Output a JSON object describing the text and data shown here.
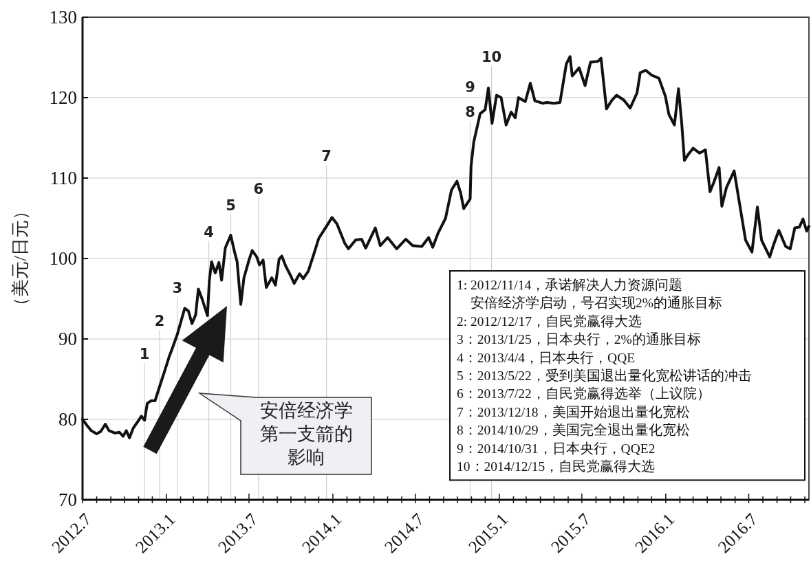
{
  "chart_data": {
    "type": "line",
    "ylabel": "（美元/日元）",
    "xlim": [
      "2012-07-01",
      "2016-11-10"
    ],
    "ylim": [
      70,
      130
    ],
    "yticks": [
      70,
      80,
      90,
      100,
      110,
      120,
      130
    ],
    "grid": "y",
    "xticks": [
      {
        "value": "2012-07-01",
        "label": "2012.7"
      },
      {
        "value": "2012-08-01",
        "label": null
      },
      {
        "value": "2012-09-01",
        "label": null
      },
      {
        "value": "2012-10-01",
        "label": null
      },
      {
        "value": "2012-11-01",
        "label": null
      },
      {
        "value": "2012-12-01",
        "label": null
      },
      {
        "value": "2013-01-01",
        "label": "2013.1"
      },
      {
        "value": "2013-02-01",
        "label": null
      },
      {
        "value": "2013-03-01",
        "label": null
      },
      {
        "value": "2013-04-01",
        "label": null
      },
      {
        "value": "2013-05-01",
        "label": null
      },
      {
        "value": "2013-06-01",
        "label": null
      },
      {
        "value": "2013-07-01",
        "label": "2013.7"
      },
      {
        "value": "2013-08-01",
        "label": null
      },
      {
        "value": "2013-09-01",
        "label": null
      },
      {
        "value": "2013-10-01",
        "label": null
      },
      {
        "value": "2013-11-01",
        "label": null
      },
      {
        "value": "2013-12-01",
        "label": null
      },
      {
        "value": "2014-01-01",
        "label": "2014.1"
      },
      {
        "value": "2014-02-01",
        "label": null
      },
      {
        "value": "2014-03-01",
        "label": null
      },
      {
        "value": "2014-04-01",
        "label": null
      },
      {
        "value": "2014-05-01",
        "label": null
      },
      {
        "value": "2014-06-01",
        "label": null
      },
      {
        "value": "2014-07-01",
        "label": "2014.7"
      },
      {
        "value": "2014-08-01",
        "label": null
      },
      {
        "value": "2014-09-01",
        "label": null
      },
      {
        "value": "2014-10-01",
        "label": null
      },
      {
        "value": "2014-11-01",
        "label": null
      },
      {
        "value": "2014-12-01",
        "label": null
      },
      {
        "value": "2015-01-01",
        "label": "2015.1"
      },
      {
        "value": "2015-02-01",
        "label": null
      },
      {
        "value": "2015-03-01",
        "label": null
      },
      {
        "value": "2015-04-01",
        "label": null
      },
      {
        "value": "2015-05-01",
        "label": null
      },
      {
        "value": "2015-06-01",
        "label": null
      },
      {
        "value": "2015-07-01",
        "label": "2015.7"
      },
      {
        "value": "2015-08-01",
        "label": null
      },
      {
        "value": "2015-09-01",
        "label": null
      },
      {
        "value": "2015-10-01",
        "label": null
      },
      {
        "value": "2015-11-01",
        "label": null
      },
      {
        "value": "2015-12-01",
        "label": null
      },
      {
        "value": "2016-01-01",
        "label": "2016.1"
      },
      {
        "value": "2016-02-01",
        "label": null
      },
      {
        "value": "2016-03-01",
        "label": null
      },
      {
        "value": "2016-04-01",
        "label": null
      },
      {
        "value": "2016-05-01",
        "label": null
      },
      {
        "value": "2016-06-01",
        "label": null
      },
      {
        "value": "2016-07-01",
        "label": "2016.7"
      },
      {
        "value": "2016-08-01",
        "label": null
      },
      {
        "value": "2016-09-01",
        "label": null
      },
      {
        "value": "2016-10-01",
        "label": null
      },
      {
        "value": "2016-11-01",
        "label": null
      }
    ],
    "annotations": [
      "安倍经济学",
      "第一支箭的",
      "影响",
      "1: 2012/11/14，承诺解决人力资源问题",
      "　安倍经济学启动，号召实现2%的通胀目标",
      "2: 2012/12/17，自民党赢得大选",
      "3：2013/1/25，日本央行，2%的通胀目标",
      "4：2013/4/4，日本央行，QQE",
      "5：2013/5/22，受到美国退出量化宽松讲话的冲击",
      "6：2013/7/22，自民党赢得选举（上议院）",
      "7：2013/12/18，美国开始退出量化宽松",
      "8：2014/10/29，美国完全退出量化宽松",
      "9：2014/10/31，日本央行，QQE2",
      "10：2014/12/15，自民党赢得大选",
      "9"
    ],
    "ref_lines": [
      {
        "axis": "x",
        "value": "2012-11-14",
        "label": "1",
        "color": "#cfcfcf"
      },
      {
        "axis": "x",
        "value": "2012-12-17",
        "label": "2",
        "color": "#cfcfcf"
      },
      {
        "axis": "x",
        "value": "2013-01-25",
        "label": "3",
        "color": "#cfcfcf"
      },
      {
        "axis": "x",
        "value": "2013-04-04",
        "label": "4",
        "color": "#cfcfcf"
      },
      {
        "axis": "x",
        "value": "2013-05-22",
        "label": "5",
        "color": "#cfcfcf"
      },
      {
        "axis": "x",
        "value": "2013-07-22",
        "label": "6",
        "color": "#cfcfcf"
      },
      {
        "axis": "x",
        "value": "2013-12-18",
        "label": "7",
        "color": "#cfcfcf"
      },
      {
        "axis": "x",
        "value": "2014-10-29",
        "label": "8",
        "color": "#cfcfcf"
      },
      {
        "axis": "x",
        "value": "2014-12-15",
        "label": "10",
        "color": "#cfcfcf"
      }
    ],
    "x": [
      "2012-07-01",
      "2012-07-10",
      "2012-07-20",
      "2012-08-01",
      "2012-08-10",
      "2012-08-20",
      "2012-08-28",
      "2012-09-10",
      "2012-09-20",
      "2012-09-28",
      "2012-10-05",
      "2012-10-12",
      "2012-10-20",
      "2012-10-31",
      "2012-11-07",
      "2012-11-14",
      "2012-11-20",
      "2012-11-28",
      "2012-12-07",
      "2012-12-17",
      "2012-12-28",
      "2013-01-07",
      "2013-01-15",
      "2013-01-25",
      "2013-02-01",
      "2013-02-10",
      "2013-02-18",
      "2013-02-26",
      "2013-03-06",
      "2013-03-12",
      "2013-03-20",
      "2013-04-01",
      "2013-04-05",
      "2013-04-10",
      "2013-04-18",
      "2013-04-26",
      "2013-05-02",
      "2013-05-10",
      "2013-05-22",
      "2013-05-30",
      "2013-06-05",
      "2013-06-13",
      "2013-06-20",
      "2013-07-01",
      "2013-07-08",
      "2013-07-18",
      "2013-07-24",
      "2013-08-01",
      "2013-08-08",
      "2013-08-20",
      "2013-08-28",
      "2013-09-05",
      "2013-09-11",
      "2013-09-20",
      "2013-10-01",
      "2013-10-08",
      "2013-10-20",
      "2013-10-28",
      "2013-11-08",
      "2013-11-20",
      "2013-12-01",
      "2013-12-18",
      "2013-12-30",
      "2014-01-10",
      "2014-01-27",
      "2014-02-04",
      "2014-02-20",
      "2014-03-05",
      "2014-03-14",
      "2014-04-04",
      "2014-04-15",
      "2014-05-01",
      "2014-05-21",
      "2014-06-10",
      "2014-06-25",
      "2014-07-15",
      "2014-07-30",
      "2014-08-08",
      "2014-08-20",
      "2014-09-05",
      "2014-09-18",
      "2014-09-30",
      "2014-10-08",
      "2014-10-15",
      "2014-10-29",
      "2014-10-31",
      "2014-11-06",
      "2014-11-20",
      "2014-12-01",
      "2014-12-08",
      "2014-12-16",
      "2014-12-26",
      "2015-01-05",
      "2015-01-16",
      "2015-01-27",
      "2015-02-05",
      "2015-02-12",
      "2015-02-27",
      "2015-03-10",
      "2015-03-20",
      "2015-04-06",
      "2015-04-15",
      "2015-05-01",
      "2015-05-14",
      "2015-05-28",
      "2015-06-05",
      "2015-06-10",
      "2015-06-25",
      "2015-07-08",
      "2015-07-20",
      "2015-08-05",
      "2015-08-12",
      "2015-08-24",
      "2015-09-04",
      "2015-09-15",
      "2015-10-01",
      "2015-10-15",
      "2015-10-30",
      "2015-11-06",
      "2015-11-18",
      "2015-12-01",
      "2015-12-17",
      "2015-12-31",
      "2016-01-08",
      "2016-01-20",
      "2016-01-29",
      "2016-02-05",
      "2016-02-11",
      "2016-02-20",
      "2016-03-01",
      "2016-03-15",
      "2016-03-28",
      "2016-04-07",
      "2016-04-15",
      "2016-04-27",
      "2016-05-03",
      "2016-05-13",
      "2016-05-30",
      "2016-06-10",
      "2016-06-24",
      "2016-07-08",
      "2016-07-20",
      "2016-07-29",
      "2016-08-16",
      "2016-08-25",
      "2016-09-05",
      "2016-09-20",
      "2016-09-30",
      "2016-10-10",
      "2016-10-20",
      "2016-10-28",
      "2016-11-05",
      "2016-11-10"
    ],
    "series": [
      {
        "color": "#111111",
        "values": [
          80.0,
          79.3,
          78.6,
          78.2,
          78.5,
          79.4,
          78.6,
          78.3,
          78.4,
          77.9,
          78.6,
          77.7,
          78.9,
          79.8,
          80.4,
          79.9,
          82.0,
          82.3,
          82.3,
          84.1,
          86.0,
          87.8,
          89.0,
          90.6,
          92.0,
          93.8,
          93.5,
          91.9,
          93.0,
          96.2,
          95.0,
          92.9,
          97.2,
          99.6,
          98.2,
          99.5,
          97.3,
          101.3,
          102.9,
          100.9,
          99.6,
          94.3,
          97.6,
          99.8,
          101.0,
          100.2,
          99.2,
          99.8,
          96.4,
          97.6,
          96.7,
          99.9,
          100.3,
          99.0,
          97.8,
          96.9,
          98.1,
          97.5,
          98.4,
          100.5,
          102.5,
          104.0,
          105.1,
          104.3,
          101.9,
          101.2,
          102.3,
          102.4,
          101.3,
          103.8,
          101.6,
          102.6,
          101.2,
          102.4,
          101.6,
          101.5,
          102.6,
          101.4,
          103.2,
          105.0,
          108.5,
          109.6,
          108.2,
          106.2,
          107.4,
          111.5,
          114.5,
          118.0,
          118.5,
          121.2,
          116.8,
          120.3,
          120.0,
          116.6,
          118.2,
          117.5,
          120.0,
          119.5,
          121.8,
          119.6,
          119.3,
          119.4,
          119.3,
          119.4,
          124.2,
          125.1,
          122.7,
          123.7,
          121.5,
          124.4,
          124.5,
          124.9,
          118.6,
          119.6,
          120.3,
          119.7,
          118.7,
          120.6,
          123.1,
          123.4,
          122.8,
          122.4,
          120.2,
          117.9,
          116.6,
          121.1,
          116.8,
          112.2,
          113.0,
          113.7,
          113.1,
          113.5,
          108.3,
          109.4,
          111.3,
          106.5,
          108.8,
          110.9,
          107.1,
          102.3,
          100.8,
          106.4,
          102.3,
          100.2,
          101.8,
          103.5,
          101.5,
          101.2,
          103.8,
          103.9,
          104.9,
          103.4,
          104.0
        ]
      }
    ]
  }
}
